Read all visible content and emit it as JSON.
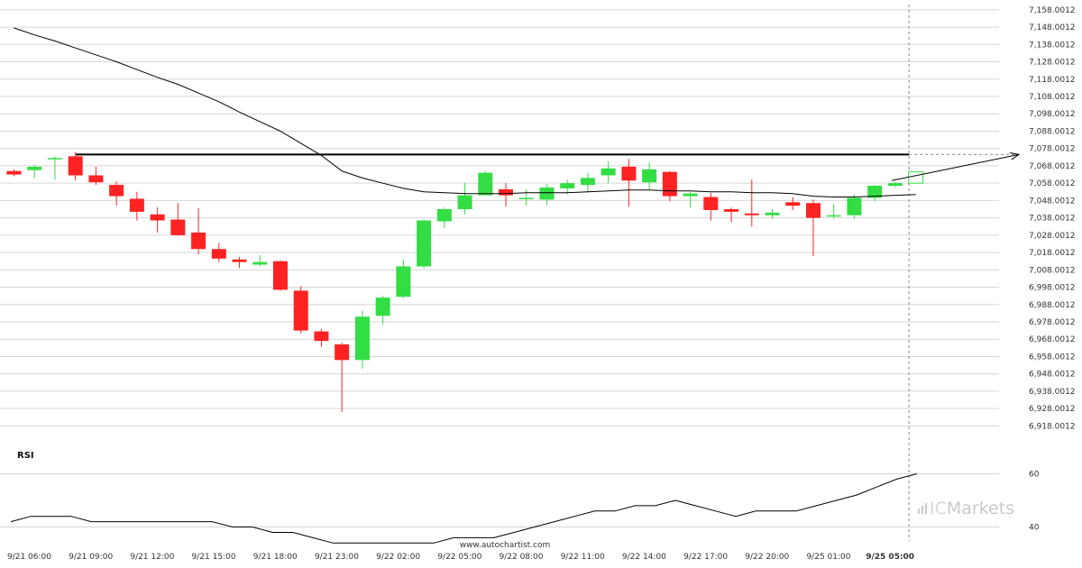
{
  "chart_data": {
    "type": "candlestick",
    "price_axis": {
      "ylim": [
        6913.0,
        7160.0
      ],
      "ticks": [
        "7,158.0012",
        "7,148.0012",
        "7,138.0012",
        "7,128.0012",
        "7,118.0012",
        "7,108.0012",
        "7,098.0012",
        "7,088.0012",
        "7,078.0012",
        "7,068.0012",
        "7,058.0012",
        "7,048.0012",
        "7,038.0012",
        "7,028.0012",
        "7,018.0012",
        "7,008.0012",
        "6,998.0012",
        "6,988.0012",
        "6,978.0012",
        "6,968.0012",
        "6,958.0012",
        "6,948.0012",
        "6,938.0012",
        "6,928.0012",
        "6,918.0012"
      ],
      "tick_values": [
        7158.0012,
        7148.0012,
        7138.0012,
        7128.0012,
        7118.0012,
        7108.0012,
        7098.0012,
        7088.0012,
        7078.0012,
        7068.0012,
        7058.0012,
        7048.0012,
        7038.0012,
        7028.0012,
        7018.0012,
        7008.0012,
        6998.0012,
        6988.0012,
        6978.0012,
        6968.0012,
        6958.0012,
        6948.0012,
        6938.0012,
        6928.0012,
        6918.0012
      ]
    },
    "x_labels": [
      "9/21 06:00",
      "9/21 09:00",
      "9/21 12:00",
      "9/21 15:00",
      "9/21 18:00",
      "9/21 23:00",
      "9/22 02:00",
      "9/22 05:00",
      "9/22 08:00",
      "9/22 11:00",
      "9/22 14:00",
      "9/22 17:00",
      "9/22 20:00",
      "9/25 01:00",
      "9/25 05:00"
    ],
    "x_label_index": [
      0,
      3,
      6,
      9,
      12,
      15,
      18,
      21,
      24,
      27,
      30,
      33,
      36,
      39,
      42
    ],
    "current_label": "9/25 05:00",
    "candles": [
      [
        7065.0,
        7063.0,
        7066.0,
        7062.0
      ],
      [
        7065.5,
        7067.5,
        7068.5,
        7061.0
      ],
      [
        7072.5,
        7072.5,
        7073.5,
        7060.0
      ],
      [
        7073.5,
        7062.5,
        7076.0,
        7059.5
      ],
      [
        7062.5,
        7058.5,
        7067.5,
        7057.0
      ],
      [
        7057.0,
        7050.5,
        7059.0,
        7045.0
      ],
      [
        7049.0,
        7041.5,
        7053.0,
        7036.5
      ],
      [
        7040.0,
        7036.5,
        7044.0,
        7029.5
      ],
      [
        7037.0,
        7028.0,
        7046.5,
        7027.5
      ],
      [
        7029.5,
        7020.0,
        7043.5,
        7017.0
      ],
      [
        7020.0,
        7014.5,
        7023.5,
        7012.5
      ],
      [
        7014.0,
        7012.5,
        7015.5,
        7009.0
      ],
      [
        7011.0,
        7012.5,
        7016.5,
        7010.0
      ],
      [
        7013.0,
        6996.5,
        7013.5,
        6996.0
      ],
      [
        6996.0,
        6973.0,
        6998.5,
        6971.5
      ],
      [
        6972.5,
        6967.0,
        6974.0,
        6963.5
      ],
      [
        6965.0,
        6956.0,
        6966.0,
        6926.0
      ],
      [
        6956.0,
        6981.0,
        6984.5,
        6951.0
      ],
      [
        6981.5,
        6992.0,
        6993.0,
        6976.5
      ],
      [
        6992.5,
        7010.0,
        7014.0,
        6991.5
      ],
      [
        7010.0,
        7036.5,
        7037.0,
        7009.0
      ],
      [
        7036.0,
        7043.0,
        7044.0,
        7032.0
      ],
      [
        7043.0,
        7051.0,
        7058.0,
        7040.0
      ],
      [
        7051.0,
        7064.0,
        7065.0,
        7051.0
      ],
      [
        7054.5,
        7051.0,
        7058.0,
        7044.5
      ],
      [
        7049.0,
        7049.5,
        7054.5,
        7045.0
      ],
      [
        7048.5,
        7055.5,
        7057.5,
        7045.5
      ],
      [
        7055.0,
        7058.0,
        7060.0,
        7051.5
      ],
      [
        7057.0,
        7061.0,
        7064.0,
        7052.5
      ],
      [
        7062.5,
        7066.5,
        7070.5,
        7058.0
      ],
      [
        7067.5,
        7059.5,
        7072.0,
        7044.5
      ],
      [
        7058.5,
        7066.0,
        7070.0,
        7054.5
      ],
      [
        7064.5,
        7050.5,
        7065.0,
        7047.5
      ],
      [
        7050.5,
        7052.0,
        7053.0,
        7044.0
      ],
      [
        7050.0,
        7042.5,
        7052.5,
        7036.5
      ],
      [
        7043.0,
        7041.5,
        7044.0,
        7035.5
      ],
      [
        7040.5,
        7039.5,
        7060.0,
        7033.0
      ],
      [
        7039.5,
        7041.0,
        7043.0,
        7037.5
      ],
      [
        7047.0,
        7045.0,
        7050.0,
        7042.5
      ],
      [
        7046.5,
        7038.0,
        7048.5,
        7016.0
      ],
      [
        7039.0,
        7039.5,
        7046.0,
        7037.5
      ],
      [
        7039.5,
        7049.5,
        7051.5,
        7037.5
      ],
      [
        7049.5,
        7056.5,
        7057.0,
        7047.5
      ],
      [
        7056.5,
        7058.0,
        7059.0,
        7055.5
      ]
    ],
    "moving_average": [
      7147.5,
      7143.5,
      7140.0,
      7136.0,
      7132.0,
      7128.0,
      7123.5,
      7119.0,
      7115.0,
      7110.0,
      7105.0,
      7099.0,
      7093.5,
      7088.0,
      7081.0,
      7074.0,
      7065.0,
      7061.0,
      7058.0,
      7055.0,
      7053.0,
      7052.5,
      7052.0,
      7052.0,
      7052.0,
      7052.5,
      7052.5,
      7052.5,
      7053.0,
      7053.5,
      7054.0,
      7054.0,
      7053.5,
      7053.5,
      7053.0,
      7053.0,
      7052.5,
      7052.5,
      7052.0,
      7050.5,
      7050.0,
      7050.0,
      7050.5,
      7051.0,
      7051.5
    ],
    "resistance_level": 7074.5,
    "projection": {
      "from_price": 7059.5,
      "to_price": 7074.5,
      "box_open": 7058.0,
      "box_close": 7064.5
    },
    "colors": {
      "bullish": "#33dd44",
      "bearish": "#ff2222",
      "line": "#000000",
      "grid": "#d6d6d6"
    },
    "rsi": {
      "label": "RSI",
      "ylim": [
        28,
        72
      ],
      "ticks": [
        "60",
        "40"
      ],
      "tick_values": [
        60,
        40
      ],
      "values": [
        42,
        44,
        44,
        44,
        42,
        42,
        42,
        42,
        42,
        42,
        42,
        40,
        40,
        38,
        38,
        36,
        34,
        34,
        34,
        34,
        34,
        34,
        36,
        36,
        36,
        38,
        40,
        42,
        44,
        46,
        46,
        48,
        48,
        50,
        48,
        46,
        44,
        46,
        46,
        46,
        48,
        50,
        52,
        55,
        58,
        60
      ]
    }
  },
  "footer": {
    "website": "www.autochartist.com",
    "brand_prefix": "IC",
    "brand_suffix": "Markets"
  }
}
